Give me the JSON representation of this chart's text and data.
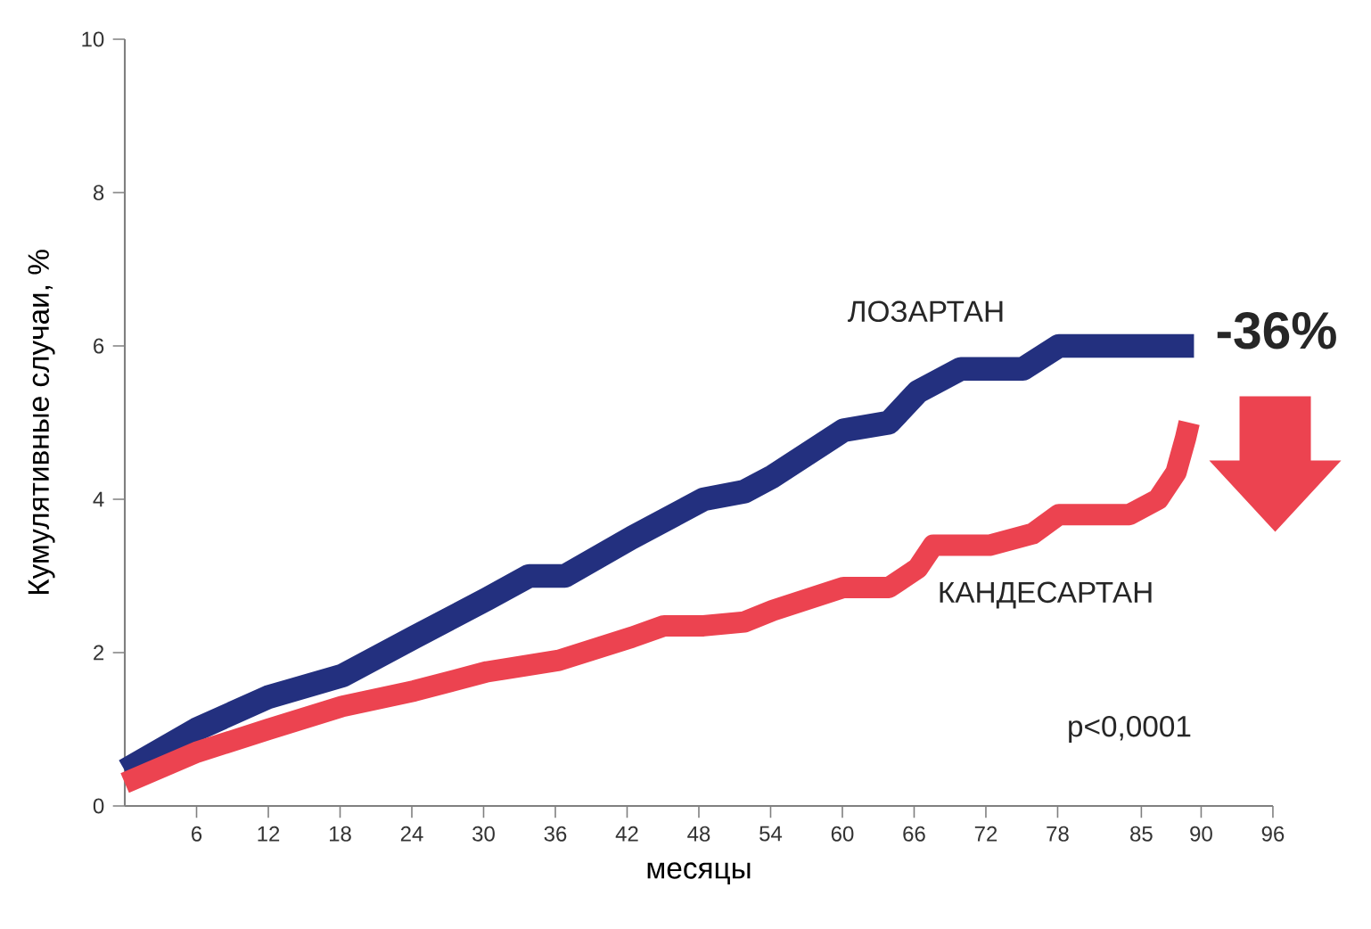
{
  "chart_data": {
    "type": "line",
    "xlabel": "месяцы",
    "ylabel": "Кумулятивные случаи, %",
    "xlim": [
      0,
      96
    ],
    "ylim": [
      0,
      10
    ],
    "xticks": [
      6,
      12,
      18,
      24,
      30,
      36,
      42,
      48,
      54,
      60,
      66,
      72,
      78,
      85,
      90,
      96
    ],
    "yticks": [
      0,
      2,
      4,
      6,
      8,
      10
    ],
    "marker": "none",
    "line_style": "solid",
    "annotations": [
      "-36%",
      "p<0,0001"
    ],
    "series": [
      {
        "name": "ЛОЗАРТАН",
        "color": "#23307f",
        "x": [
          0,
          6,
          12,
          18.2,
          24.2,
          30.3,
          33.8,
          36.8,
          42.4,
          48.4,
          51.8,
          54.2,
          60.1,
          63.9,
          66.3,
          69.9,
          75.1,
          78.1,
          89.4
        ],
        "values": [
          0.46,
          1.0,
          1.42,
          1.7,
          2.2,
          2.7,
          3.0,
          3.0,
          3.5,
          4.0,
          4.1,
          4.3,
          4.9,
          5.0,
          5.4,
          5.7,
          5.7,
          6.0,
          6.0
        ]
      },
      {
        "name": "КАНДЕСАРТАН",
        "color": "#ec4350",
        "x": [
          0,
          6,
          12,
          18.2,
          24.2,
          30.3,
          36.3,
          42.4,
          45.1,
          48.4,
          51.8,
          54.2,
          60.1,
          63.9,
          66.3,
          67.6,
          72.3,
          75.9,
          78.1,
          84,
          86.4,
          87.9,
          88.7,
          89.0
        ],
        "values": [
          0.3,
          0.7,
          1.0,
          1.3,
          1.5,
          1.75,
          1.9,
          2.2,
          2.35,
          2.35,
          2.4,
          2.55,
          2.85,
          2.85,
          3.1,
          3.4,
          3.4,
          3.55,
          3.8,
          3.8,
          4.0,
          4.35,
          4.8,
          5.0
        ]
      }
    ]
  }
}
